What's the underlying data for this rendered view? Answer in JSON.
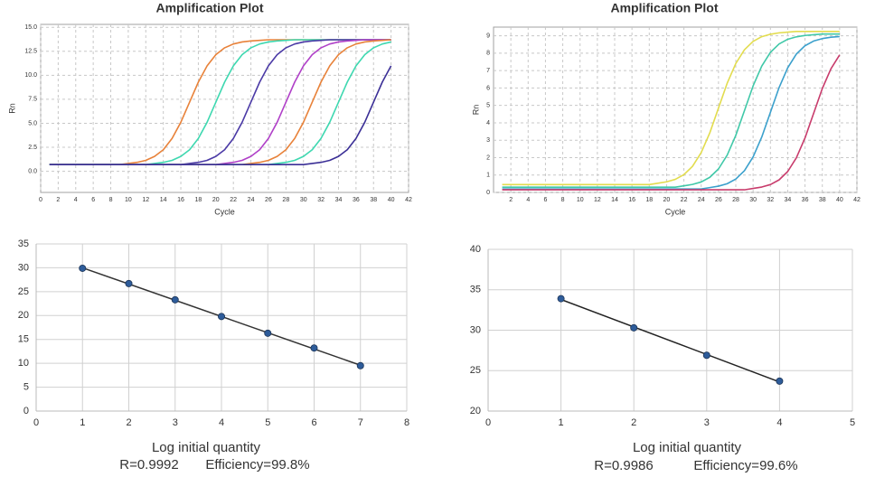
{
  "chart_data": [
    {
      "type": "line",
      "title": "Amplification Plot",
      "xlabel": "Cycle",
      "ylabel": "Rn",
      "grid": "dashed",
      "xlim": [
        0,
        42
      ],
      "xticks": [
        0,
        2,
        4,
        6,
        8,
        10,
        12,
        14,
        16,
        18,
        20,
        22,
        24,
        26,
        28,
        30,
        32,
        34,
        36,
        38,
        40,
        42
      ],
      "ylim": [
        -2.2,
        15.3
      ],
      "yticks": [
        {
          "value": 0,
          "label": "0.0"
        },
        2.5,
        {
          "value": 5,
          "label": "5.0"
        },
        7.5,
        {
          "value": 10,
          "label": "10.0"
        },
        12.5,
        {
          "value": 15,
          "label": "15.0"
        }
      ],
      "x": [
        1,
        2,
        3,
        4,
        5,
        6,
        7,
        8,
        9,
        10,
        11,
        12,
        13,
        14,
        15,
        16,
        17,
        18,
        19,
        20,
        21,
        22,
        23,
        24,
        25,
        26,
        27,
        28,
        29,
        30,
        31,
        32,
        33,
        34,
        35,
        36,
        37,
        38,
        39,
        40
      ],
      "series": [
        {
          "color": "#e8823a",
          "values": [
            0.7,
            0.7,
            0.7,
            0.7,
            0.7,
            0.7,
            0.7,
            0.7,
            0.7,
            0.82,
            0.93,
            1.14,
            1.55,
            2.25,
            3.42,
            5.11,
            7.2,
            9.29,
            10.98,
            12.15,
            12.86,
            13.26,
            13.47,
            13.58,
            13.64,
            13.7,
            13.7,
            13.7,
            13.7,
            13.7,
            13.7,
            13.7,
            13.7,
            13.7,
            13.7,
            13.7,
            13.7,
            13.7,
            13.7,
            13.7
          ]
        },
        {
          "color": "#3ed8b0",
          "values": [
            0.7,
            0.7,
            0.7,
            0.7,
            0.7,
            0.7,
            0.7,
            0.7,
            0.7,
            0.7,
            0.7,
            0.7,
            0.82,
            0.93,
            1.14,
            1.55,
            2.25,
            3.42,
            5.11,
            7.2,
            9.29,
            10.98,
            12.15,
            12.86,
            13.26,
            13.47,
            13.58,
            13.64,
            13.7,
            13.7,
            13.7,
            13.7,
            13.7,
            13.7,
            13.7,
            13.7,
            13.7,
            13.7,
            13.7,
            13.7
          ]
        },
        {
          "color": "#4b3aa6",
          "values": [
            0.7,
            0.7,
            0.7,
            0.7,
            0.7,
            0.7,
            0.7,
            0.7,
            0.7,
            0.7,
            0.7,
            0.7,
            0.7,
            0.7,
            0.7,
            0.7,
            0.82,
            0.93,
            1.14,
            1.55,
            2.25,
            3.42,
            5.11,
            7.2,
            9.29,
            10.98,
            12.15,
            12.86,
            13.26,
            13.47,
            13.58,
            13.64,
            13.7,
            13.7,
            13.7,
            13.7,
            13.7,
            13.7,
            13.7,
            13.7
          ]
        },
        {
          "color": "#b040c8",
          "values": [
            0.7,
            0.7,
            0.7,
            0.7,
            0.7,
            0.7,
            0.7,
            0.7,
            0.7,
            0.7,
            0.7,
            0.7,
            0.7,
            0.7,
            0.7,
            0.7,
            0.7,
            0.7,
            0.7,
            0.7,
            0.82,
            0.93,
            1.14,
            1.55,
            2.25,
            3.42,
            5.11,
            7.2,
            9.29,
            10.98,
            12.15,
            12.86,
            13.26,
            13.47,
            13.58,
            13.64,
            13.7,
            13.7,
            13.7,
            13.7
          ]
        },
        {
          "color": "#e8823a",
          "values": [
            0.7,
            0.7,
            0.7,
            0.7,
            0.7,
            0.7,
            0.7,
            0.7,
            0.7,
            0.7,
            0.7,
            0.7,
            0.7,
            0.7,
            0.7,
            0.7,
            0.7,
            0.7,
            0.7,
            0.7,
            0.7,
            0.7,
            0.7,
            0.82,
            0.93,
            1.14,
            1.55,
            2.25,
            3.42,
            5.11,
            7.2,
            9.29,
            10.98,
            12.15,
            12.86,
            13.26,
            13.47,
            13.58,
            13.64,
            13.7
          ]
        },
        {
          "color": "#3ed8b0",
          "values": [
            0.7,
            0.7,
            0.7,
            0.7,
            0.7,
            0.7,
            0.7,
            0.7,
            0.7,
            0.7,
            0.7,
            0.7,
            0.7,
            0.7,
            0.7,
            0.7,
            0.7,
            0.7,
            0.7,
            0.7,
            0.7,
            0.7,
            0.7,
            0.7,
            0.7,
            0.7,
            0.82,
            0.93,
            1.14,
            1.55,
            2.25,
            3.42,
            5.11,
            7.2,
            9.29,
            10.98,
            12.15,
            12.86,
            13.26,
            13.47
          ]
        },
        {
          "color": "#3b2f96",
          "values": [
            0.7,
            0.7,
            0.7,
            0.7,
            0.7,
            0.7,
            0.7,
            0.7,
            0.7,
            0.7,
            0.7,
            0.7,
            0.7,
            0.7,
            0.7,
            0.7,
            0.7,
            0.7,
            0.7,
            0.7,
            0.7,
            0.7,
            0.7,
            0.7,
            0.7,
            0.7,
            0.7,
            0.7,
            0.7,
            0.7,
            0.82,
            0.93,
            1.14,
            1.55,
            2.25,
            3.42,
            5.11,
            7.2,
            9.29,
            10.98
          ]
        }
      ]
    },
    {
      "type": "line",
      "title": "Amplification Plot",
      "xlabel": "Cycle",
      "ylabel": "Rn",
      "grid": "dashed",
      "xlim": [
        0,
        42
      ],
      "xticks": [
        2,
        4,
        6,
        8,
        10,
        12,
        14,
        16,
        18,
        20,
        22,
        24,
        26,
        28,
        30,
        32,
        34,
        36,
        38,
        40,
        42
      ],
      "ylim": [
        0,
        9.5
      ],
      "yticks": [
        0,
        1,
        2,
        3,
        4,
        5,
        6,
        7,
        8,
        9
      ],
      "x": [
        1,
        2,
        3,
        4,
        5,
        6,
        7,
        8,
        9,
        10,
        11,
        12,
        13,
        14,
        15,
        16,
        17,
        18,
        19,
        20,
        21,
        22,
        23,
        24,
        25,
        26,
        27,
        28,
        29,
        30,
        31,
        32,
        33,
        34,
        35,
        36,
        37,
        38,
        39,
        40
      ],
      "series": [
        {
          "color": "#e2dc4e",
          "values": [
            0.45,
            0.45,
            0.45,
            0.45,
            0.45,
            0.45,
            0.45,
            0.45,
            0.45,
            0.45,
            0.45,
            0.45,
            0.45,
            0.45,
            0.45,
            0.45,
            0.45,
            0.45,
            0.53,
            0.61,
            0.75,
            1.02,
            1.5,
            2.29,
            3.43,
            4.85,
            6.27,
            7.41,
            8.2,
            8.68,
            8.95,
            9.09,
            9.17,
            9.21,
            9.25,
            9.25,
            9.25,
            9.25,
            9.25,
            9.25
          ]
        },
        {
          "color": "#40c8a8",
          "values": [
            0.3,
            0.3,
            0.3,
            0.3,
            0.3,
            0.3,
            0.3,
            0.3,
            0.3,
            0.3,
            0.3,
            0.3,
            0.3,
            0.3,
            0.3,
            0.3,
            0.3,
            0.3,
            0.3,
            0.3,
            0.3,
            0.38,
            0.46,
            0.6,
            0.87,
            1.35,
            2.14,
            3.28,
            4.7,
            6.12,
            7.26,
            8.05,
            8.53,
            8.8,
            8.94,
            9.02,
            9.06,
            9.1,
            9.1,
            9.1
          ]
        },
        {
          "color": "#3ba0cc",
          "values": [
            0.2,
            0.2,
            0.2,
            0.2,
            0.2,
            0.2,
            0.2,
            0.2,
            0.2,
            0.2,
            0.2,
            0.2,
            0.2,
            0.2,
            0.2,
            0.2,
            0.2,
            0.2,
            0.2,
            0.2,
            0.2,
            0.2,
            0.2,
            0.2,
            0.28,
            0.36,
            0.5,
            0.77,
            1.25,
            2.04,
            3.18,
            4.6,
            6.02,
            7.16,
            7.95,
            8.43,
            8.7,
            8.84,
            8.92,
            8.96
          ]
        },
        {
          "color": "#c83c6c",
          "values": [
            0.15,
            0.15,
            0.15,
            0.15,
            0.15,
            0.15,
            0.15,
            0.15,
            0.15,
            0.15,
            0.15,
            0.15,
            0.15,
            0.15,
            0.15,
            0.15,
            0.15,
            0.15,
            0.15,
            0.15,
            0.15,
            0.15,
            0.15,
            0.15,
            0.15,
            0.15,
            0.15,
            0.15,
            0.15,
            0.23,
            0.31,
            0.45,
            0.72,
            1.2,
            1.99,
            3.13,
            4.55,
            5.97,
            7.11,
            7.9
          ]
        }
      ]
    },
    {
      "type": "scatter",
      "xlabel": "Log initial quantity",
      "annotations": [
        "R=0.9992",
        "Efficiency=99.8%"
      ],
      "grid": "solid",
      "xlim": [
        0,
        8
      ],
      "xticks": [
        0,
        1,
        2,
        3,
        4,
        5,
        6,
        7,
        8
      ],
      "ylim": [
        0,
        35
      ],
      "yticks": [
        0,
        5,
        10,
        15,
        20,
        25,
        30,
        35
      ],
      "series": [
        {
          "color": "#333333",
          "line": true,
          "x": [
            1,
            7
          ],
          "values": [
            30,
            9.6
          ]
        },
        {
          "color": "#2e5c9a",
          "x": [
            1,
            2,
            3,
            4,
            5,
            6,
            7
          ],
          "values": [
            29.9,
            26.7,
            23.3,
            19.8,
            16.3,
            13.2,
            9.5
          ]
        }
      ]
    },
    {
      "type": "scatter",
      "xlabel": "Log initial quantity",
      "annotations": [
        "R=0.9986",
        "Efficiency=99.6%"
      ],
      "grid": "solid",
      "xlim": [
        0,
        5
      ],
      "xticks": [
        0,
        1,
        2,
        3,
        4,
        5
      ],
      "ylim": [
        20,
        40
      ],
      "yticks": [
        20,
        25,
        30,
        35,
        40
      ],
      "series": [
        {
          "color": "#222222",
          "line": true,
          "x": [
            1,
            4
          ],
          "values": [
            33.8,
            23.6
          ]
        },
        {
          "color": "#2e5c9a",
          "x": [
            1,
            2,
            3,
            4
          ],
          "values": [
            33.9,
            30.3,
            26.9,
            23.7
          ]
        }
      ]
    }
  ]
}
